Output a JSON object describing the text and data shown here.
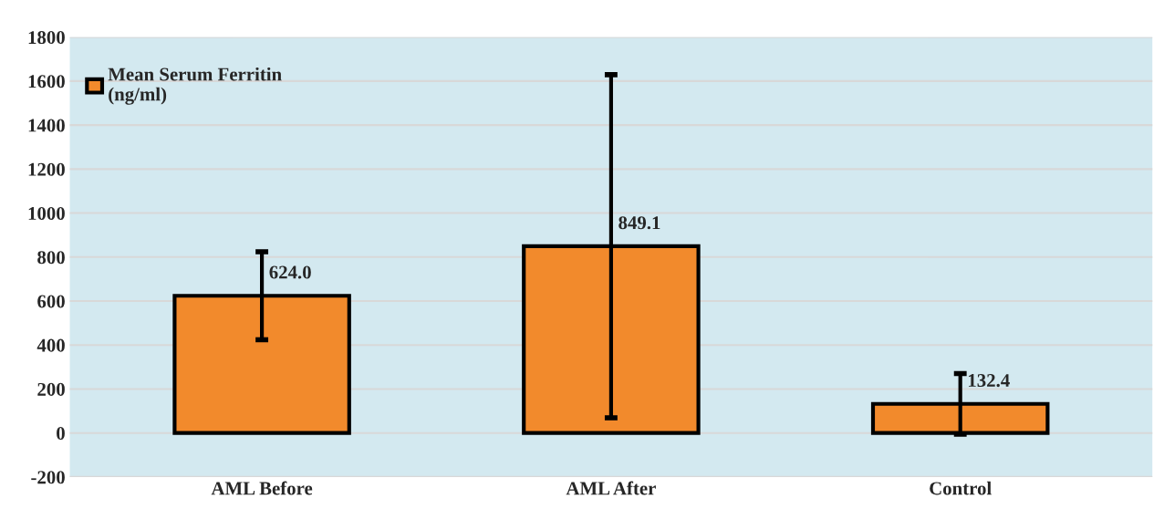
{
  "chart_data": {
    "type": "bar",
    "categories": [
      "AML Before",
      "AML After",
      "Control"
    ],
    "series": [
      {
        "name": "Mean Serum Ferritin\n(ng/ml)",
        "color": "#f28a2c",
        "values": [
          624.0,
          849.1,
          132.4
        ],
        "errors": [
          200,
          780,
          138
        ],
        "value_labels": [
          "624.0",
          "849.1",
          "132.4"
        ]
      }
    ],
    "ylim": [
      -200,
      1800
    ],
    "yticks": [
      -200,
      0,
      200,
      400,
      600,
      800,
      1000,
      1200,
      1400,
      1600,
      1800
    ],
    "grid": "y",
    "legend": "top left"
  }
}
